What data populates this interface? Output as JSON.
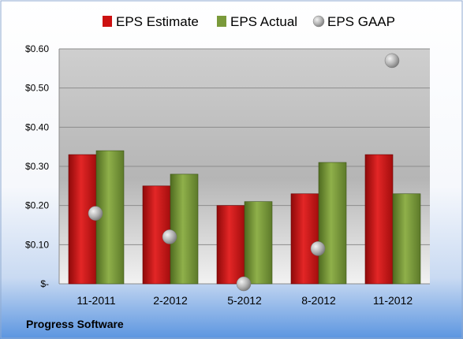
{
  "chart_data": {
    "type": "bar",
    "categories": [
      "11-2011",
      "2-2012",
      "5-2012",
      "8-2012",
      "11-2012"
    ],
    "series": [
      {
        "name": "EPS Estimate",
        "type": "bar",
        "color": "#cc1111",
        "values": [
          0.33,
          0.25,
          0.2,
          0.23,
          0.33
        ]
      },
      {
        "name": "EPS Actual",
        "type": "bar",
        "color": "#7a9a3a",
        "values": [
          0.34,
          0.28,
          0.21,
          0.31,
          0.23
        ]
      },
      {
        "name": "EPS GAAP",
        "type": "scatter",
        "color": "#a8a8a8",
        "values": [
          0.18,
          0.12,
          0.0,
          0.09,
          0.57
        ]
      }
    ],
    "y_ticks": [
      {
        "value": 0.6,
        "label": "$0.60"
      },
      {
        "value": 0.5,
        "label": "$0.50"
      },
      {
        "value": 0.4,
        "label": "$0.40"
      },
      {
        "value": 0.3,
        "label": "$0.30"
      },
      {
        "value": 0.2,
        "label": "$0.20"
      },
      {
        "value": 0.1,
        "label": "$0.10"
      },
      {
        "value": 0.0,
        "label": "$-"
      }
    ],
    "ylim": [
      0,
      0.6
    ],
    "grid": true,
    "legend_position": "top",
    "company_label": "Progress Software"
  }
}
